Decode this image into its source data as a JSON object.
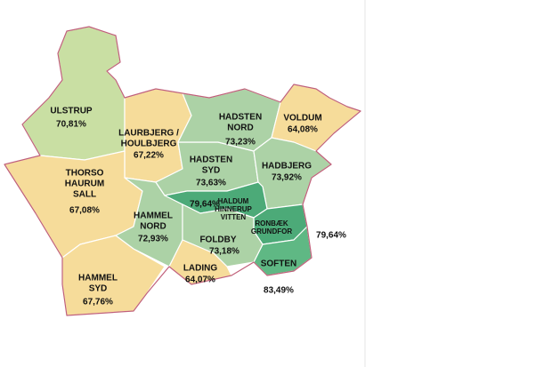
{
  "regions": [
    {
      "name": [
        "ULSTRUP"
      ],
      "value": "70,81%",
      "color": "#c9dfa3"
    },
    {
      "name": [
        "LAURBJERG /",
        "HOULBJERG"
      ],
      "value": "67,22%",
      "color": "#f6dc9a"
    },
    {
      "name": [
        "THORSO",
        "HAURUM",
        "SALL"
      ],
      "value": "67,08%",
      "color": "#f6dc9a"
    },
    {
      "name": [
        "HAMMEL",
        "SYD"
      ],
      "value": "67,76%",
      "color": "#f6dc9a"
    },
    {
      "name": [
        "HAMMEL",
        "NORD"
      ],
      "value": "72,93%",
      "color": "#acd2a6"
    },
    {
      "name": [
        "HADSTEN",
        "SYD"
      ],
      "value": "73,63%",
      "color": "#acd2a6"
    },
    {
      "name": [
        "HADSTEN",
        "NORD"
      ],
      "value": "73,23%",
      "color": "#acd2a6"
    },
    {
      "name": [
        "VOLDUM"
      ],
      "value": "64,08%",
      "color": "#f6dc9a"
    },
    {
      "name": [
        "HADBJERG"
      ],
      "value": "73,92%",
      "color": "#acd2a6"
    },
    {
      "name": [
        "HALDUM",
        "HINNERUP",
        "VITTEN"
      ],
      "value": "79,64%",
      "color": "#4caa78"
    },
    {
      "name": [
        "RONBÆK",
        "GRUNDFOR"
      ],
      "value": "79,64%",
      "color": "#4caa78"
    },
    {
      "name": [
        "SOFTEN"
      ],
      "value": "83,49%",
      "color": "#5fb884"
    },
    {
      "name": [
        "FOLDBY"
      ],
      "value": "73,18%",
      "color": "#acd2a6"
    },
    {
      "name": [
        "LADING"
      ],
      "value": "64,07%",
      "color": "#f6dc9a"
    }
  ]
}
